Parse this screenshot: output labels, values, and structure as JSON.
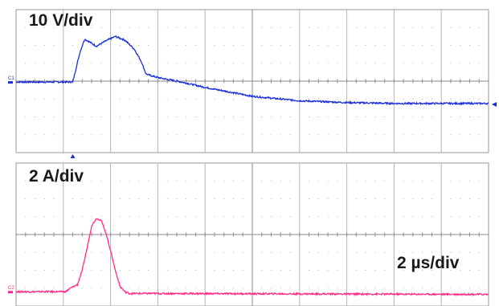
{
  "labels": {
    "voltage_scale": "10 V/div",
    "current_scale": "2 A/div",
    "time_scale": "2 µs/div"
  },
  "channels": {
    "c1": {
      "marker": "C1",
      "color": "#1a2fd6"
    },
    "c2": {
      "marker": "C2",
      "color": "#ff2a8a"
    }
  },
  "chart_data": [
    {
      "type": "line",
      "title": "",
      "xlabel": "",
      "ylabel": "",
      "grid": true,
      "xlim": [
        0,
        10
      ],
      "ylim": [
        -4,
        4
      ],
      "series": [
        {
          "x": [
            0,
            1.2,
            1.35,
            1.45,
            1.55,
            1.7,
            1.9,
            2.1,
            2.3,
            2.5,
            2.65,
            2.75,
            2.8,
            3.0,
            3.5,
            4,
            5,
            6,
            7,
            8,
            9,
            10
          ],
          "values": [
            -0.05,
            -0.05,
            1.6,
            2.35,
            2.2,
            1.95,
            2.25,
            2.5,
            2.3,
            1.8,
            1.1,
            0.4,
            0.35,
            0.2,
            -0.05,
            -0.35,
            -0.85,
            -1.1,
            -1.2,
            -1.25,
            -1.25,
            -1.25
          ]
        }
      ]
    },
    {
      "type": "line",
      "title": "",
      "xlabel": "",
      "ylabel": "",
      "grid": true,
      "xlim": [
        0,
        10
      ],
      "ylim": [
        -4,
        4
      ],
      "series": [
        {
          "x": [
            0,
            1.05,
            1.15,
            1.3,
            1.4,
            1.5,
            1.6,
            1.7,
            1.8,
            1.9,
            2.0,
            2.1,
            2.2,
            2.3,
            2.4,
            2.5,
            2.6,
            3.0,
            10
          ],
          "values": [
            -3.2,
            -3.2,
            -3.0,
            -2.8,
            -2.0,
            -0.8,
            0.5,
            0.9,
            0.8,
            0.1,
            -0.9,
            -2.0,
            -2.9,
            -3.2,
            -3.3,
            -3.3,
            -3.3,
            -3.3,
            -3.35
          ]
        }
      ]
    }
  ]
}
